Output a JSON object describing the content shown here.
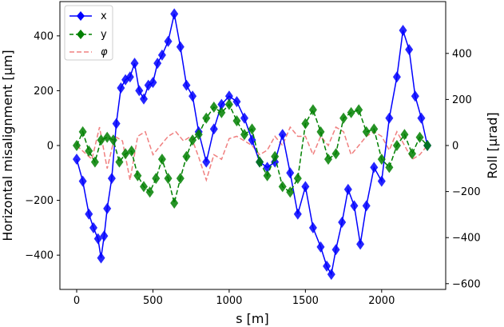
{
  "chart_data": {
    "type": "line",
    "title": "",
    "xlabel": "s  [m]",
    "ylabel_left": "Horizontal misalignment [μm]",
    "ylabel_right": "Roll [μrad]",
    "xlim": [
      -110,
      2420
    ],
    "ylim_left": [
      -525,
      525
    ],
    "ylim_right": [
      -625,
      625
    ],
    "xticks": [
      0,
      500,
      1000,
      1500,
      2000
    ],
    "yticks_left": [
      -400,
      -200,
      0,
      200,
      400
    ],
    "yticks_right": [
      -600,
      -400,
      -200,
      0,
      200,
      400
    ],
    "xtick_labels": [
      "0",
      "500",
      "1000",
      "1500",
      "2000"
    ],
    "ytick_labels_left": [
      "−400",
      "−200",
      "0",
      "200",
      "400"
    ],
    "ytick_labels_right": [
      "−600",
      "−400",
      "−200",
      "0",
      "200",
      "400"
    ],
    "grid": false,
    "legend_position": "top-left",
    "series": [
      {
        "name": "x",
        "axis": "left",
        "color": "#0000ff",
        "marker": "diamond",
        "linestyle": "solid",
        "x": [
          0,
          40,
          80,
          110,
          140,
          160,
          180,
          200,
          230,
          260,
          290,
          320,
          350,
          380,
          410,
          440,
          470,
          500,
          530,
          560,
          600,
          640,
          680,
          720,
          760,
          800,
          850,
          900,
          950,
          1000,
          1050,
          1100,
          1150,
          1200,
          1250,
          1300,
          1350,
          1400,
          1450,
          1500,
          1550,
          1600,
          1640,
          1670,
          1700,
          1740,
          1780,
          1820,
          1860,
          1900,
          1950,
          2000,
          2050,
          2100,
          2140,
          2180,
          2220,
          2260,
          2300
        ],
        "values": [
          -50,
          -130,
          -250,
          -300,
          -340,
          -410,
          -330,
          -230,
          -120,
          80,
          210,
          240,
          250,
          300,
          200,
          170,
          220,
          230,
          300,
          330,
          380,
          480,
          360,
          220,
          180,
          50,
          -60,
          60,
          150,
          180,
          160,
          100,
          20,
          -60,
          -80,
          -60,
          40,
          -100,
          -250,
          -150,
          -300,
          -370,
          -440,
          -470,
          -380,
          -280,
          -160,
          -220,
          -360,
          -220,
          -80,
          -130,
          100,
          250,
          420,
          350,
          180,
          100,
          0
        ]
      },
      {
        "name": "y",
        "axis": "left",
        "color": "#008000",
        "marker": "diamond",
        "linestyle": "dashed",
        "x": [
          0,
          40,
          80,
          120,
          160,
          200,
          240,
          280,
          320,
          360,
          400,
          440,
          480,
          520,
          560,
          600,
          640,
          680,
          720,
          760,
          800,
          850,
          900,
          950,
          1000,
          1050,
          1100,
          1150,
          1200,
          1250,
          1300,
          1350,
          1400,
          1450,
          1500,
          1550,
          1600,
          1650,
          1700,
          1750,
          1800,
          1850,
          1900,
          1950,
          2000,
          2050,
          2100,
          2150,
          2200,
          2250,
          2300
        ],
        "values": [
          0,
          50,
          -20,
          -60,
          20,
          30,
          20,
          -60,
          -30,
          -20,
          -110,
          -150,
          -170,
          -120,
          -50,
          -120,
          -210,
          -120,
          -40,
          20,
          40,
          100,
          140,
          120,
          150,
          90,
          40,
          60,
          -60,
          -110,
          -40,
          -150,
          -170,
          -120,
          80,
          130,
          50,
          -50,
          -30,
          100,
          120,
          130,
          50,
          60,
          -50,
          -80,
          0,
          40,
          -30,
          30,
          0
        ]
      },
      {
        "name": "φ",
        "axis": "right",
        "color": "#f08080",
        "marker": "none",
        "linestyle": "dashed",
        "x": [
          0,
          100,
          150,
          200,
          250,
          300,
          350,
          400,
          450,
          500,
          550,
          600,
          650,
          700,
          750,
          800,
          850,
          900,
          950,
          1000,
          1050,
          1100,
          1150,
          1200,
          1250,
          1300,
          1350,
          1400,
          1450,
          1500,
          1550,
          1600,
          1650,
          1700,
          1750,
          1800,
          1850,
          1900,
          1950,
          2000,
          2050,
          2100,
          2150,
          2200,
          2250,
          2300
        ],
        "values": [
          0,
          -60,
          80,
          -100,
          40,
          20,
          -150,
          40,
          60,
          -40,
          0,
          40,
          60,
          20,
          40,
          -50,
          -150,
          -40,
          -60,
          30,
          40,
          20,
          0,
          -40,
          -20,
          40,
          0,
          80,
          40,
          40,
          -40,
          40,
          0,
          80,
          60,
          -40,
          0,
          40,
          60,
          40,
          -20,
          60,
          0,
          -60,
          -40,
          0
        ]
      }
    ]
  }
}
